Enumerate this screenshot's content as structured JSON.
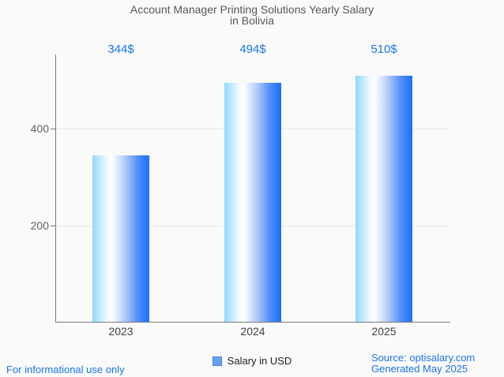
{
  "title": {
    "line1": "Account Manager Printing Solutions Yearly Salary",
    "line2": "in Bolivia"
  },
  "chart_data": {
    "type": "bar",
    "title": "Account Manager Printing Solutions Yearly Salary in Bolivia",
    "categories": [
      "2023",
      "2024",
      "2025"
    ],
    "series": [
      {
        "name": "Salary in USD",
        "values": [
          344,
          494,
          510
        ]
      }
    ],
    "value_labels": [
      "344$",
      "494$",
      "510$"
    ],
    "xlabel": "",
    "ylabel": "",
    "y_ticks": [
      200,
      400
    ],
    "ylim": [
      0,
      553
    ],
    "grid": true,
    "legend_position": "bottom",
    "bar_gradient": [
      "#8ed9fa",
      "#eef9ff",
      "#ffffff",
      "#dbe7fc",
      "#a6c4f8",
      "#5b93f7",
      "#2e7bfc",
      "#1f6eff"
    ],
    "bar_gradient_stops": [
      0,
      25,
      34,
      45,
      60,
      78,
      92,
      100
    ]
  },
  "legend": {
    "label": "Salary in USD",
    "marker_fill": "#67a1f3",
    "marker_border": "#4a7fd4"
  },
  "footer": {
    "left": "For informational use only",
    "source": "Source: optisalary.com",
    "generated": "Generated May 2025"
  },
  "colors": {
    "background": "#fafafa",
    "accent_blue": "#1a73e8",
    "title_gray": "#565656",
    "axis_gray": "#7b7b7b",
    "grid_gray": "#e7e7e7",
    "y_label_gray": "#616161",
    "x_label_gray": "#424242"
  }
}
